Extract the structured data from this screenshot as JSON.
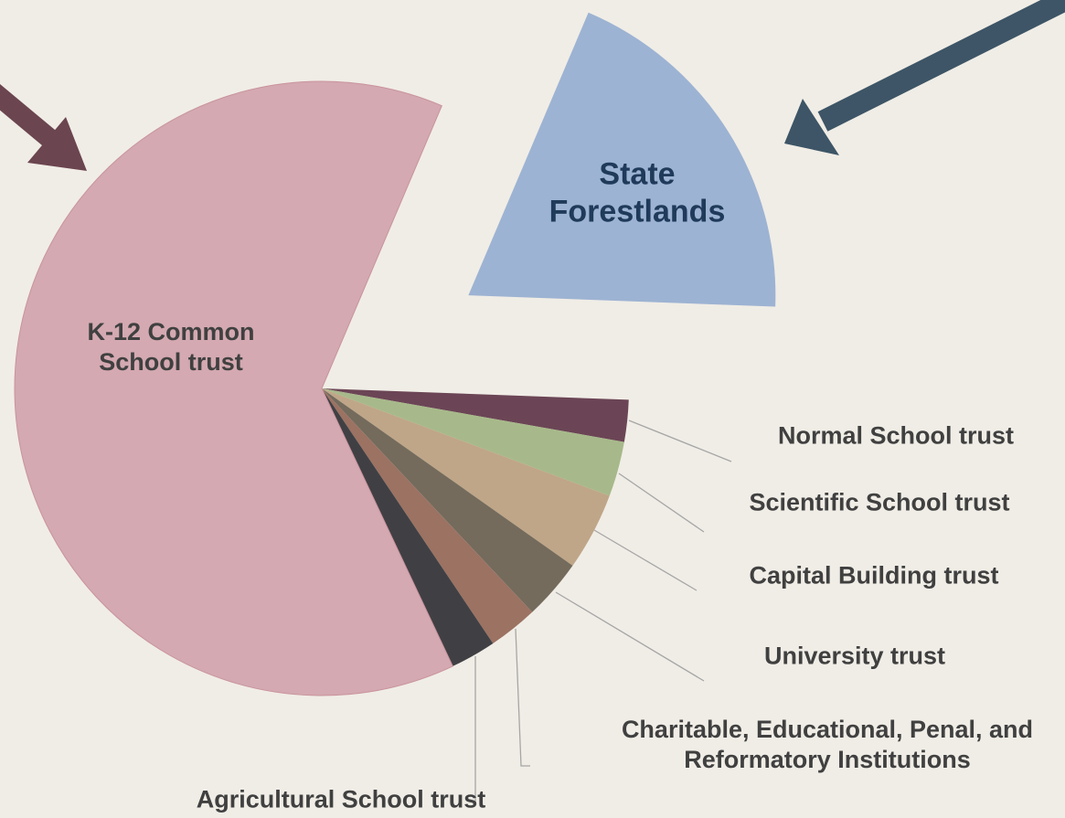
{
  "chart_data": {
    "type": "pie",
    "categories": [
      "State Forestlands",
      "Normal School trust",
      "Scientific School trust",
      "Capital Building trust",
      "University trust",
      "Charitable, Educational, Penal, and Reformatory Institutions",
      "Agricultural School trust",
      "K-12 Common School trust"
    ],
    "values": [
      19.2,
      2.2,
      2.9,
      4.1,
      3.2,
      2.6,
      2.4,
      63.4
    ],
    "colors": [
      "#9db3d3",
      "#6b4555",
      "#a7b98a",
      "#bfa688",
      "#746b5c",
      "#9c7262",
      "#404044",
      "#d4a9b1"
    ]
  }
}
